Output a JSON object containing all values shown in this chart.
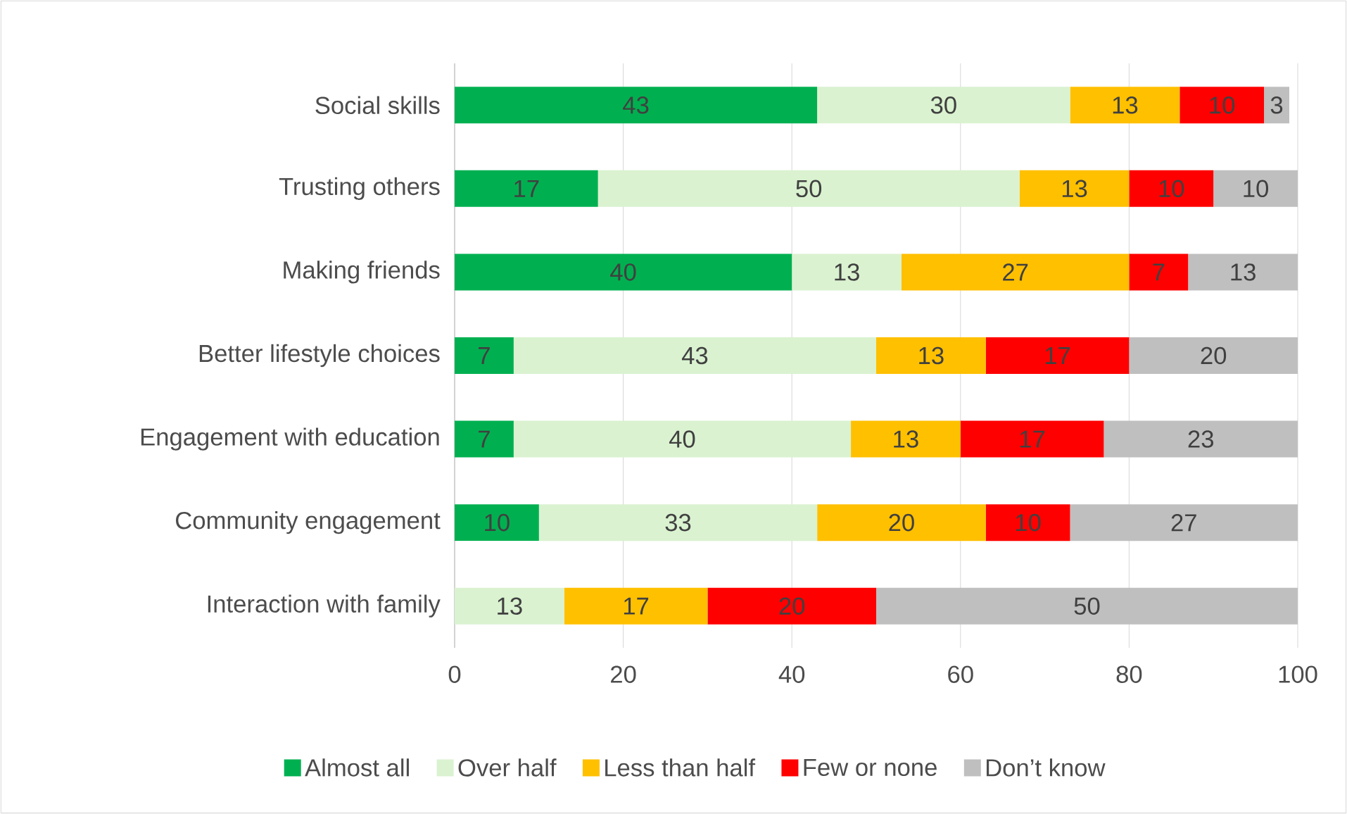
{
  "chart_data": {
    "type": "bar",
    "orientation": "horizontal",
    "stacked": true,
    "categories": [
      "Social skills",
      "Trusting others",
      "Making friends",
      "Better lifestyle choices",
      "Engagement with education",
      "Community engagement",
      "Interaction with family"
    ],
    "series": [
      {
        "name": "Almost all",
        "color": "#00b050",
        "values": [
          43,
          17,
          40,
          7,
          7,
          10,
          null
        ]
      },
      {
        "name": "Over half",
        "color": "#daf2d0",
        "values": [
          30,
          50,
          13,
          43,
          40,
          33,
          13
        ]
      },
      {
        "name": "Less than half",
        "color": "#ffc000",
        "values": [
          13,
          13,
          27,
          13,
          13,
          20,
          17
        ]
      },
      {
        "name": "Few or none",
        "color": "#ff0000",
        "values": [
          10,
          10,
          7,
          17,
          17,
          10,
          20
        ]
      },
      {
        "name": "Don’t know",
        "color": "#bfbfbf",
        "values": [
          3,
          10,
          13,
          20,
          23,
          27,
          50
        ]
      }
    ],
    "xlim": [
      0,
      100
    ],
    "xticks": [
      0,
      20,
      40,
      60,
      80,
      100
    ],
    "grid": "x",
    "legend": "bottom",
    "data_labels": true
  }
}
